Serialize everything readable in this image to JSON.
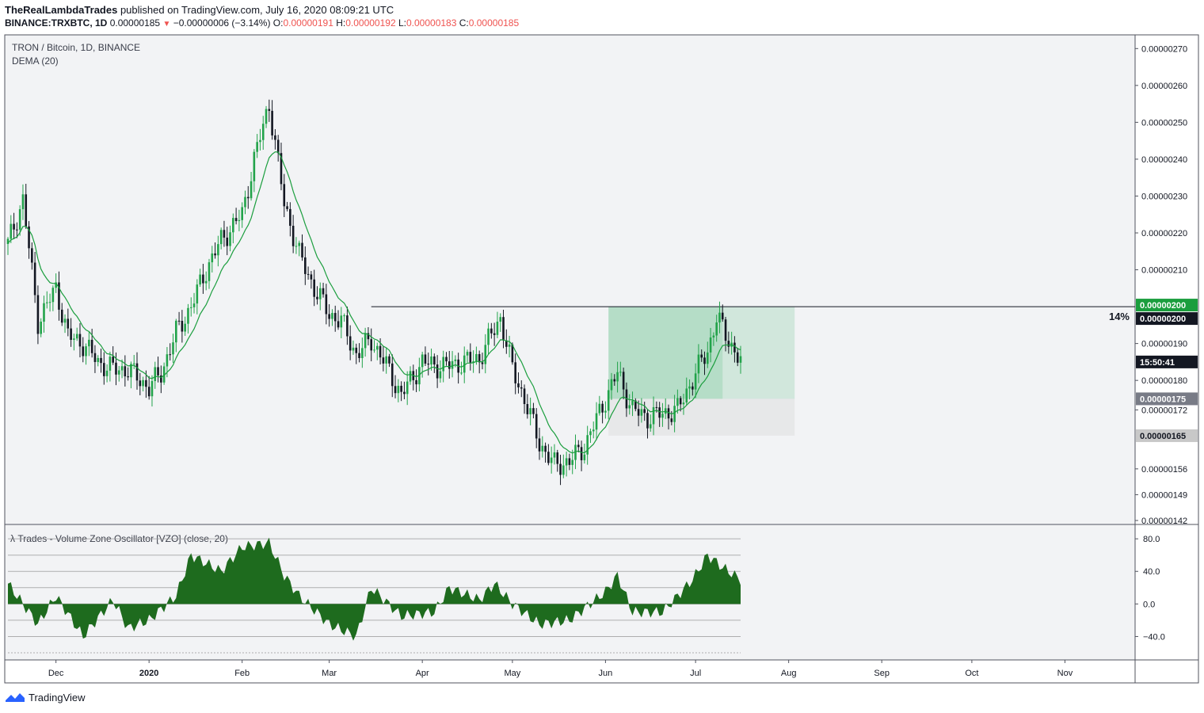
{
  "header": {
    "author": "TheRealLambdaTrades",
    "published_text": "published on TradingView.com, July 16, 2020 08:09:21 UTC",
    "symbol": "BINANCE:TRXBTC, 1D",
    "last": "0.00000185",
    "change": "−0.00000006 (−3.14%)",
    "o_label": "O:",
    "o_val": "0.00000191",
    "h_label": "H:",
    "h_val": "0.00000192",
    "l_label": "L:",
    "l_val": "0.00000183",
    "c_label": "C:",
    "c_val": "0.00000185"
  },
  "legend": {
    "title": "TRON / Bitcoin, 1D, BINANCE",
    "indicator": "DEMA (20)",
    "oscillator": "λ Trades - Volume Zone Oscillator [VZO] (close, 20)"
  },
  "footer": {
    "brand": "TradingView"
  },
  "colors": {
    "up": "#26a69a",
    "candle_up": "#22a34a",
    "candle_down": "#131722",
    "dema": "#1b9e3e",
    "osc": "#1e6b1e",
    "bg": "#f2f3f5"
  },
  "chart_data": [
    {
      "type": "candlestick",
      "title": "TRON / Bitcoin, 1D, BINANCE",
      "x_ticks": [
        "Dec",
        "2020",
        "Feb",
        "Mar",
        "Apr",
        "May",
        "Jun",
        "Jul",
        "Aug",
        "Sep",
        "Oct",
        "Nov"
      ],
      "y_ticks": [
        "0.00000270",
        "0.00000260",
        "0.00000250",
        "0.00000240",
        "0.00000230",
        "0.00000220",
        "0.00000210",
        "0.00000190",
        "0.00000180",
        "0.00000172",
        "0.00000156",
        "0.00000149",
        "0.00000142"
      ],
      "ylim": [
        1.42e-06,
        2.72e-06
      ],
      "price_labels": {
        "target": "0.00000200",
        "entry_line": "0.00000200",
        "countdown": "15:50:41",
        "stop_zone": "0.00000175",
        "bottom_zone": "0.00000165",
        "percent": "14%"
      },
      "horizontal_line": 2e-06,
      "position_zone": {
        "entry": 1.75e-06,
        "target": 2e-06,
        "stop": 1.65e-06,
        "start": "2020-06-02",
        "end": "2020-08-03"
      },
      "series": [
        {
          "name": "TRXBTC",
          "points": [
            [
              "2019-11-15",
              2.17e-06
            ],
            [
              "2019-11-20",
              2.29e-06
            ],
            [
              "2019-11-25",
              1.96e-06
            ],
            [
              "2019-12-01",
              2.05e-06
            ],
            [
              "2019-12-05",
              1.92e-06
            ],
            [
              "2019-12-10",
              1.9e-06
            ],
            [
              "2019-12-15",
              1.85e-06
            ],
            [
              "2019-12-20",
              1.83e-06
            ],
            [
              "2019-12-25",
              1.83e-06
            ],
            [
              "2020-01-01",
              1.78e-06
            ],
            [
              "2020-01-05",
              1.82e-06
            ],
            [
              "2020-01-10",
              1.93e-06
            ],
            [
              "2020-01-15",
              2e-06
            ],
            [
              "2020-01-20",
              2.1e-06
            ],
            [
              "2020-01-25",
              2.18e-06
            ],
            [
              "2020-02-01",
              2.25e-06
            ],
            [
              "2020-02-05",
              2.4e-06
            ],
            [
              "2020-02-10",
              2.55e-06
            ],
            [
              "2020-02-15",
              2.28e-06
            ],
            [
              "2020-02-20",
              2.14e-06
            ],
            [
              "2020-02-25",
              2.05e-06
            ],
            [
              "2020-03-01",
              1.98e-06
            ],
            [
              "2020-03-05",
              1.96e-06
            ],
            [
              "2020-03-10",
              1.87e-06
            ],
            [
              "2020-03-15",
              1.91e-06
            ],
            [
              "2020-03-20",
              1.84e-06
            ],
            [
              "2020-03-25",
              1.76e-06
            ],
            [
              "2020-04-01",
              1.85e-06
            ],
            [
              "2020-04-05",
              1.84e-06
            ],
            [
              "2020-04-10",
              1.84e-06
            ],
            [
              "2020-04-20",
              1.86e-06
            ],
            [
              "2020-04-27",
              1.97e-06
            ],
            [
              "2020-05-01",
              1.83e-06
            ],
            [
              "2020-05-05",
              1.75e-06
            ],
            [
              "2020-05-10",
              1.63e-06
            ],
            [
              "2020-05-15",
              1.57e-06
            ],
            [
              "2020-05-20",
              1.58e-06
            ],
            [
              "2020-05-25",
              1.62e-06
            ],
            [
              "2020-06-01",
              1.75e-06
            ],
            [
              "2020-06-05",
              1.82e-06
            ],
            [
              "2020-06-10",
              1.72e-06
            ],
            [
              "2020-06-15",
              1.7e-06
            ],
            [
              "2020-06-20",
              1.71e-06
            ],
            [
              "2020-06-25",
              1.72e-06
            ],
            [
              "2020-07-01",
              1.82e-06
            ],
            [
              "2020-07-05",
              1.88e-06
            ],
            [
              "2020-07-08",
              1.97e-06
            ],
            [
              "2020-07-12",
              1.91e-06
            ],
            [
              "2020-07-16",
              1.85e-06
            ]
          ]
        },
        {
          "name": "DEMA (20)"
        }
      ]
    },
    {
      "type": "area",
      "title": "λ Trades - Volume Zone Oscillator [VZO] (close, 20)",
      "y_ticks": [
        "80.0",
        "40.0",
        "0.0",
        "−40.0"
      ],
      "ylim": [
        -60,
        85
      ],
      "series": [
        {
          "name": "VZO",
          "points": [
            [
              "2019-11-15",
              25
            ],
            [
              "2019-11-25",
              -25
            ],
            [
              "2019-12-01",
              10
            ],
            [
              "2019-12-10",
              -40
            ],
            [
              "2019-12-20",
              5
            ],
            [
              "2019-12-25",
              -30
            ],
            [
              "2020-01-01",
              -20
            ],
            [
              "2020-01-10",
              10
            ],
            [
              "2020-01-15",
              60
            ],
            [
              "2020-01-25",
              40
            ],
            [
              "2020-02-01",
              70
            ],
            [
              "2020-02-10",
              75
            ],
            [
              "2020-02-15",
              35
            ],
            [
              "2020-02-20",
              10
            ],
            [
              "2020-03-01",
              -25
            ],
            [
              "2020-03-10",
              -40
            ],
            [
              "2020-03-15",
              20
            ],
            [
              "2020-03-25",
              -15
            ],
            [
              "2020-04-05",
              -10
            ],
            [
              "2020-04-10",
              20
            ],
            [
              "2020-04-20",
              5
            ],
            [
              "2020-04-25",
              25
            ],
            [
              "2020-05-01",
              0
            ],
            [
              "2020-05-10",
              -25
            ],
            [
              "2020-05-20",
              -20
            ],
            [
              "2020-06-01",
              15
            ],
            [
              "2020-06-05",
              35
            ],
            [
              "2020-06-10",
              -10
            ],
            [
              "2020-06-20",
              -10
            ],
            [
              "2020-06-30",
              30
            ],
            [
              "2020-07-05",
              60
            ],
            [
              "2020-07-10",
              45
            ],
            [
              "2020-07-16",
              30
            ]
          ]
        }
      ]
    }
  ]
}
